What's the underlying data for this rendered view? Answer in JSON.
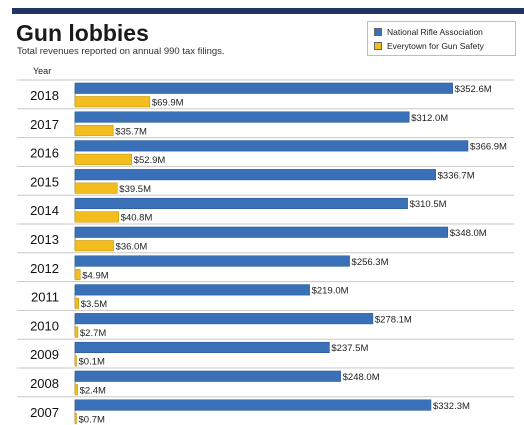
{
  "header": {
    "title": "Gun lobbies",
    "subtitle": "Total revenues reported on annual 990 tax filings.",
    "year_column_label": "Year"
  },
  "legend": [
    {
      "name": "National Rifle Association",
      "color": "#3a70b8"
    },
    {
      "name": "Everytown for Gun Safety",
      "color": "#f2bd1d"
    }
  ],
  "chart_data": {
    "type": "bar",
    "orientation": "horizontal",
    "title": "Gun lobbies",
    "subtitle": "Total revenues reported on annual 990 tax filings.",
    "categories": [
      "2018",
      "2017",
      "2016",
      "2015",
      "2014",
      "2013",
      "2012",
      "2011",
      "2010",
      "2009",
      "2008",
      "2007"
    ],
    "series": [
      {
        "name": "National Rifle Association",
        "color": "#3a70b8",
        "values": [
          352.6,
          312.0,
          366.9,
          336.7,
          310.5,
          348.0,
          256.3,
          219.0,
          278.1,
          237.5,
          248.0,
          332.3
        ],
        "labels": [
          "$352.6M",
          "$312.0M",
          "$366.9M",
          "$336.7M",
          "$310.5M",
          "$348.0M",
          "$256.3M",
          "$219.0M",
          "$278.1M",
          "$237.5M",
          "$248.0M",
          "$332.3M"
        ]
      },
      {
        "name": "Everytown for Gun Safety",
        "color": "#f2bd1d",
        "values": [
          69.9,
          35.7,
          52.9,
          39.5,
          40.8,
          36.0,
          4.9,
          3.5,
          2.7,
          0.1,
          2.4,
          0.7
        ],
        "labels": [
          "$69.9M",
          "$35.7M",
          "$52.9M",
          "$39.5M",
          "$40.8M",
          "$36.0M",
          "$4.9M",
          "$3.5M",
          "$2.7M",
          "$0.1M",
          "$2.4M",
          "$0.7M"
        ]
      }
    ],
    "xlim": [
      0,
      366.9
    ],
    "grid": false,
    "legend_position": "top-right"
  }
}
